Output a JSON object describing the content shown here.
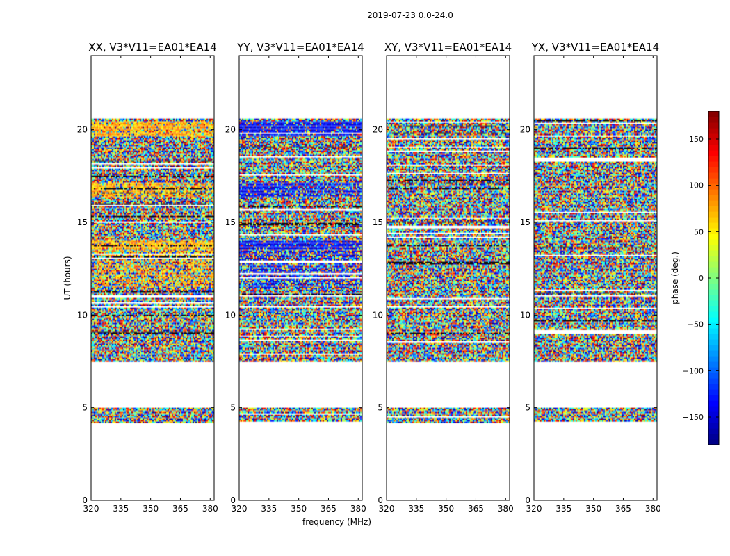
{
  "figure_title": "2019-07-23 0.0-24.0",
  "colors": {
    "jet": [
      "#00007f",
      "#0000ff",
      "#007fff",
      "#00ffff",
      "#7fff7f",
      "#ffff00",
      "#ff7f00",
      "#ff0000",
      "#7f0000"
    ],
    "frame": "#000000",
    "background": "#ffffff"
  },
  "chart_data": [
    {
      "type": "heatmap",
      "title": "XX, V3*V11=EA01*EA14",
      "xlabel": "",
      "ylabel": "UT (hours)",
      "xlim": [
        320,
        382
      ],
      "ylim": [
        0,
        24
      ],
      "xticks": [
        320,
        335,
        350,
        365,
        380
      ],
      "yticks": [
        0,
        5,
        10,
        15,
        20
      ],
      "value_range_deg": [
        -180,
        180
      ],
      "data_time_ranges_hours": [
        [
          4.2,
          5.0
        ],
        [
          7.5,
          20.6
        ]
      ],
      "flagged_gap_hours": [
        [
          5.0,
          7.5
        ]
      ],
      "description_values": "phase mostly noise; coherent warm phase (~+50 to +120 deg) bands near 13.8, 16.5-17.2 and 19.8-20.4 h"
    },
    {
      "type": "heatmap",
      "title": "YY, V3*V11=EA01*EA14",
      "xlabel": "frequency (MHz)",
      "ylabel": "",
      "xlim": [
        320,
        382
      ],
      "ylim": [
        0,
        24
      ],
      "xticks": [
        320,
        335,
        350,
        365,
        380
      ],
      "yticks": [
        0,
        5,
        10,
        15,
        20
      ],
      "value_range_deg": [
        -180,
        180
      ],
      "data_time_ranges_hours": [
        [
          4.2,
          5.0
        ],
        [
          7.5,
          20.6
        ]
      ],
      "flagged_gap_hours": [
        [
          5.0,
          7.5
        ]
      ],
      "description_values": "phase mostly noise; coherent cool phase (~-120 to -160 deg) bands near 13.8, 16.5-17.2 and 19.8-20.4 h"
    },
    {
      "type": "heatmap",
      "title": "XY, V3*V11=EA01*EA14",
      "xlabel": "",
      "ylabel": "",
      "xlim": [
        320,
        382
      ],
      "ylim": [
        0,
        24
      ],
      "xticks": [
        320,
        335,
        350,
        365,
        380
      ],
      "yticks": [
        0,
        5,
        10,
        15,
        20
      ],
      "value_range_deg": [
        -180,
        180
      ],
      "data_time_ranges_hours": [
        [
          4.2,
          5.0
        ],
        [
          7.5,
          20.6
        ]
      ],
      "flagged_gap_hours": [
        [
          5.0,
          7.5
        ]
      ],
      "description_values": "phase noise across full range"
    },
    {
      "type": "heatmap",
      "title": "YX, V3*V11=EA01*EA14",
      "xlabel": "",
      "ylabel": "",
      "xlim": [
        320,
        382
      ],
      "ylim": [
        0,
        24
      ],
      "xticks": [
        320,
        335,
        350,
        365,
        380
      ],
      "yticks": [
        0,
        5,
        10,
        15,
        20
      ],
      "value_range_deg": [
        -180,
        180
      ],
      "data_time_ranges_hours": [
        [
          4.2,
          5.0
        ],
        [
          7.5,
          20.6
        ]
      ],
      "flagged_gap_hours": [
        [
          5.0,
          7.5
        ]
      ],
      "description_values": "phase noise across full range"
    }
  ],
  "colorbar": {
    "label": "phase (deg.)",
    "range": [
      -180,
      180
    ],
    "ticks": [
      150,
      100,
      50,
      0,
      -50,
      -100,
      -150
    ],
    "tick_labels": [
      "150",
      "100",
      "50",
      "0",
      "−50",
      "−100",
      "−150"
    ]
  }
}
